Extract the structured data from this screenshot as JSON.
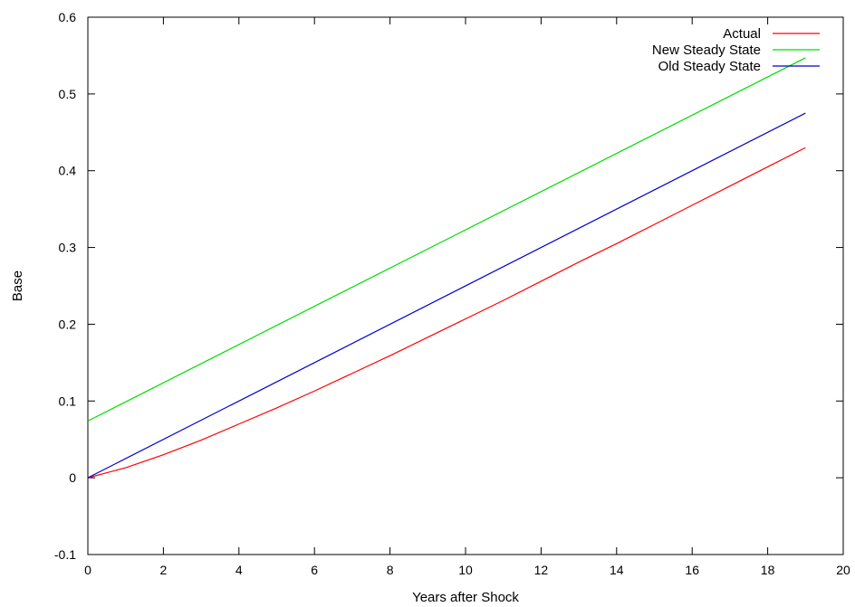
{
  "chart_data": {
    "type": "line",
    "title": "",
    "xlabel": "Years after Shock",
    "ylabel": "Base",
    "xlim": [
      0,
      20
    ],
    "ylim": [
      -0.1,
      0.6
    ],
    "x_ticks": [
      0,
      2,
      4,
      6,
      8,
      10,
      12,
      14,
      16,
      18,
      20
    ],
    "y_ticks": [
      -0.1,
      0,
      0.1,
      0.2,
      0.3,
      0.4,
      0.5,
      0.6
    ],
    "y_tick_labels": [
      "-0.1",
      "0",
      "0.1",
      "0.2",
      "0.3",
      "0.4",
      "0.5",
      "0.6"
    ],
    "grid": false,
    "legend_position": "top-right",
    "series": [
      {
        "name": "Actual",
        "color": "#ff0000",
        "x": [
          0,
          1,
          2,
          3,
          4,
          5,
          6,
          7,
          8,
          9,
          10,
          11,
          12,
          13,
          14,
          15,
          16,
          17,
          18,
          19
        ],
        "y": [
          0,
          0.013,
          0.03,
          0.049,
          0.07,
          0.091,
          0.113,
          0.136,
          0.159,
          0.183,
          0.207,
          0.231,
          0.256,
          0.281,
          0.305,
          0.33,
          0.355,
          0.38,
          0.405,
          0.43
        ]
      },
      {
        "name": "New Steady State",
        "color": "#00dd00",
        "x": [
          0,
          19
        ],
        "y": [
          0.074,
          0.547
        ]
      },
      {
        "name": "Old Steady State",
        "color": "#0000cc",
        "x": [
          0,
          19
        ],
        "y": [
          0,
          0.475
        ]
      }
    ]
  }
}
